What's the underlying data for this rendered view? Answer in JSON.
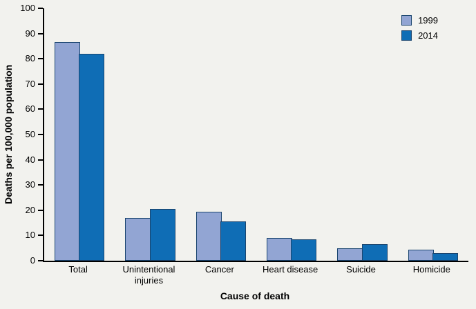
{
  "chart_data": {
    "type": "bar",
    "title": "",
    "xlabel": "Cause of death",
    "ylabel": "Deaths per 100,000 population",
    "ylim": [
      0,
      100
    ],
    "ytick_step": 10,
    "grid": false,
    "legend_position": "top-right",
    "categories": [
      "Total",
      "Unintentional injuries",
      "Cancer",
      "Heart disease",
      "Suicide",
      "Homicide"
    ],
    "series": [
      {
        "name": "1999",
        "color": "#92a5d3",
        "values": [
          86.5,
          17,
          19.5,
          9,
          5,
          4.5
        ]
      },
      {
        "name": "2014",
        "color": "#0f6db5",
        "values": [
          82,
          20.5,
          15.5,
          8.5,
          6.5,
          3
        ]
      }
    ],
    "bar_border_color": "#1a456f",
    "axis_color": "#000000",
    "background_color": "#f2f2ee"
  }
}
